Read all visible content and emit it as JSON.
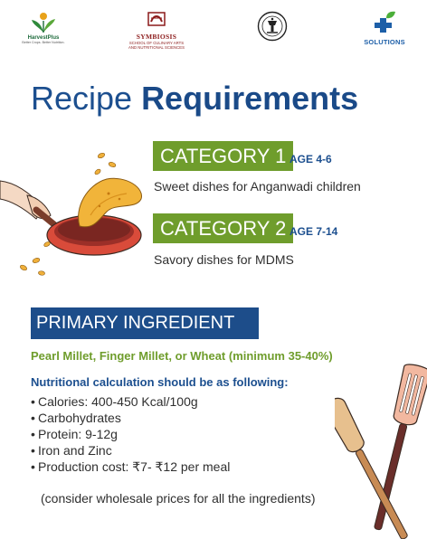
{
  "logos": {
    "harvestplus": {
      "name": "HarvestPlus",
      "tagline": "Better Crops. Better Nutrition."
    },
    "symbiosis": {
      "name": "SYMBIOSIS",
      "subtitle_line1": "SCHOOL OF CULINARY ARTS",
      "subtitle_line2": "AND NUTRITIONAL SCIENCES"
    },
    "seal": {
      "icon": "emblem-seal-icon"
    },
    "solutions": {
      "name": "SOLUTIONS"
    }
  },
  "title": {
    "regular": "Recipe ",
    "bold": "Requirements"
  },
  "categories": [
    {
      "label": "CATEGORY 1",
      "age": "AGE 4-6",
      "description": "Sweet dishes for Anganwadi children"
    },
    {
      "label": "CATEGORY 2",
      "age": "AGE 7-14",
      "description": "Savory dishes for MDMS"
    }
  ],
  "primary": {
    "heading": "PRIMARY INGREDIENT",
    "ingredients": "Pearl Millet, Finger Millet, or Wheat (minimum 35-40%)",
    "nutrition_heading": "Nutritional calculation should be as following:",
    "bullet_char": "•",
    "items": [
      "Calories: 400-450 Kcal/100g",
      "Carbohydrates",
      "Protein: 9-12g",
      "Iron and Zinc",
      "Production cost: ₹7- ₹12 per meal"
    ],
    "note": "(consider wholesale prices for all the ingredients)"
  },
  "colors": {
    "title_blue": "#1c4f8f",
    "category_green": "#6f9d2c",
    "primary_bar_blue": "#1d4d8a"
  }
}
